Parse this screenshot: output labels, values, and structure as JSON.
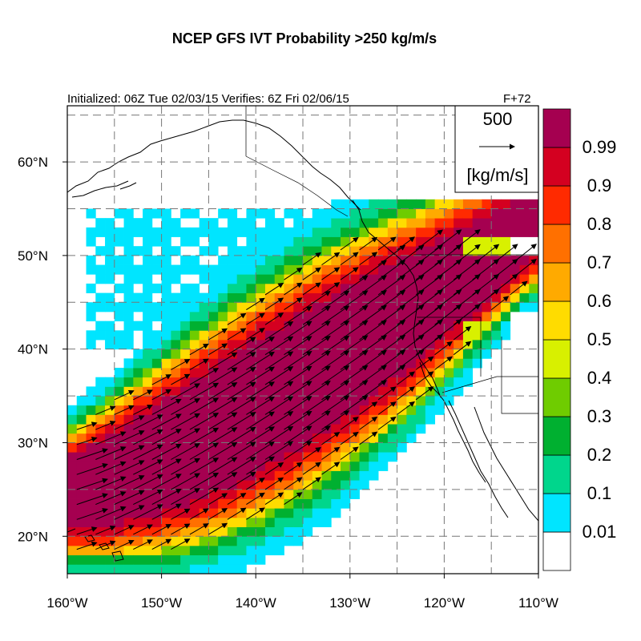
{
  "title": "NCEP GFS IVT Probability >250 kg/m/s",
  "subtitle": {
    "left": "Initialized: 06Z Tue 02/03/15 Verifies:  6Z Fri 02/06/15",
    "right": "F+72"
  },
  "reference_vector": {
    "value": "500",
    "units": "[kg/m/s]"
  },
  "colors": {
    "prob_0_01": "#ffffff",
    "prob_0_1": "#00e5ff",
    "prob_0_2": "#00d68c",
    "prob_0_3": "#00b030",
    "prob_0_4": "#6fcc00",
    "prob_0_5": "#d8f000",
    "prob_0_6": "#ffdc00",
    "prob_0_7": "#ffaa00",
    "prob_0_8": "#ff7000",
    "prob_0_9": "#ff2a00",
    "prob_0_99": "#d40020",
    "prob_1_0": "#a50050"
  },
  "colorbar": {
    "labels": [
      "0.01",
      "0.1",
      "0.2",
      "0.3",
      "0.4",
      "0.5",
      "0.6",
      "0.7",
      "0.8",
      "0.9",
      "0.99"
    ],
    "colors": [
      "#ffffff",
      "#00e5ff",
      "#00d68c",
      "#00b030",
      "#6fcc00",
      "#d8f000",
      "#ffdc00",
      "#ffaa00",
      "#ff7000",
      "#ff2a00",
      "#d40020",
      "#a50050"
    ]
  },
  "map": {
    "lon_range": [
      -160,
      -110
    ],
    "lat_range": [
      16,
      66
    ],
    "x_ticks": [
      {
        "lon": -160,
        "label": "160°W"
      },
      {
        "lon": -150,
        "label": "150°W"
      },
      {
        "lon": -140,
        "label": "140°W"
      },
      {
        "lon": -130,
        "label": "130°W"
      },
      {
        "lon": -120,
        "label": "120°W"
      },
      {
        "lon": -110,
        "label": "110°W"
      }
    ],
    "y_ticks": [
      {
        "lat": 20,
        "label": "20°N"
      },
      {
        "lat": 30,
        "label": "30°N"
      },
      {
        "lat": 40,
        "label": "40°N"
      },
      {
        "lat": 50,
        "label": "50°N"
      },
      {
        "lat": 60,
        "label": "60°N"
      }
    ],
    "grid_lons": [
      -155,
      -150,
      -145,
      -140,
      -135,
      -130,
      -125,
      -120,
      -115
    ],
    "grid_lats": [
      20,
      25,
      30,
      35,
      40,
      45,
      50,
      55,
      60,
      65
    ]
  }
}
